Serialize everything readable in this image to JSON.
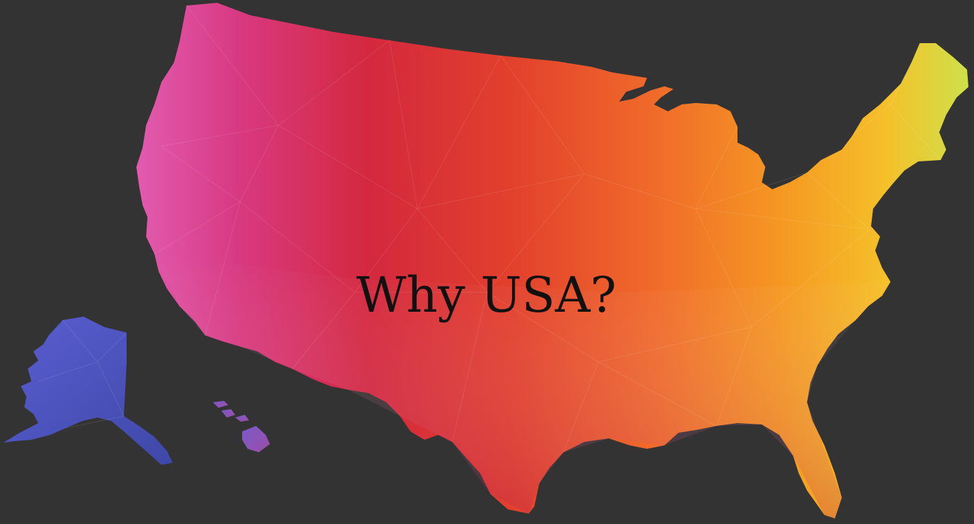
{
  "headline": "Why USA?",
  "colors": {
    "background": "#333333",
    "text": "#111111",
    "alaska": "#4a52b8",
    "hawaii": "#8a52b0",
    "west": "#d63a7e",
    "central": "#d62a3e",
    "east": "#f07a2a",
    "northeast": "#e8d23a"
  },
  "image": {
    "subject": "low-poly-usa-map"
  }
}
